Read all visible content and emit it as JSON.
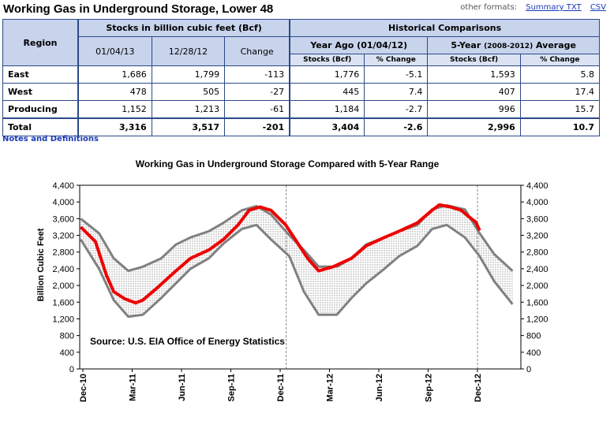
{
  "header": {
    "title": "Working Gas in Underground Storage, Lower 48",
    "other_formats_label": "other formats:",
    "summary_txt_link": "Summary TXT",
    "csv_link": "CSV"
  },
  "table": {
    "region_header": "Region",
    "stocks_header": "Stocks in billion cubic feet (Bcf)",
    "historical_header": "Historical Comparisons",
    "col_date1": "01/04/13",
    "col_date2": "12/28/12",
    "col_change": "Change",
    "year_ago_header": "Year Ago (01/04/12)",
    "five_year_header_main": "5-Year",
    "five_year_header_range": "(2008-2012)",
    "five_year_header_avg": "Average",
    "sub_stocks_1": "Stocks (Bcf)",
    "sub_pct_1": "% Change",
    "sub_stocks_2": "Stocks (Bcf)",
    "sub_pct_2": "% Change",
    "rows": [
      {
        "region": "East",
        "d1": "1,686",
        "d2": "1,799",
        "change": "-113",
        "ya_stocks": "1,776",
        "ya_pct": "-5.1",
        "fy_stocks": "1,593",
        "fy_pct": "5.8"
      },
      {
        "region": "West",
        "d1": "478",
        "d2": "505",
        "change": "-27",
        "ya_stocks": "445",
        "ya_pct": "7.4",
        "fy_stocks": "407",
        "fy_pct": "17.4"
      },
      {
        "region": "Producing",
        "d1": "1,152",
        "d2": "1,213",
        "change": "-61",
        "ya_stocks": "1,184",
        "ya_pct": "-2.7",
        "fy_stocks": "996",
        "fy_pct": "15.7"
      },
      {
        "region": "Total",
        "d1": "3,316",
        "d2": "3,517",
        "change": "-201",
        "ya_stocks": "3,404",
        "ya_pct": "-2.6",
        "fy_stocks": "2,996",
        "fy_pct": "10.7"
      }
    ],
    "notes_link": "Notes and Definitions"
  },
  "chart_data": {
    "type": "line",
    "title": "Working Gas in Underground Storage Compared with 5-Year Range",
    "ylabel": "Billion Cubic Feet",
    "annotation": "Source:  U.S. EIA Office of Energy Statistics",
    "ylim": [
      0,
      4400
    ],
    "yticks": [
      "0",
      "400",
      "800",
      "1,200",
      "1,600",
      "2,000",
      "2,400",
      "2,800",
      "3,200",
      "3,600",
      "4,000",
      "4,400"
    ],
    "x_tick_labels": [
      "Dec-10",
      "Mar-11",
      "Jun-11",
      "Sep-11",
      "Dec-11",
      "Mar-12",
      "Jun-12",
      "Sep-12",
      "Dec-12"
    ],
    "colors": {
      "actual": "#ee0000",
      "range": "#808080",
      "fill": "#d8d8d8",
      "frame": "#000000"
    },
    "series": [
      {
        "name": "",
        "role": "5-year maximum",
        "x": [
          "2010-12-03",
          "2011-01-07",
          "2011-02-04",
          "2011-03-04",
          "2011-04-01",
          "2011-05-06",
          "2011-06-03",
          "2011-07-01",
          "2011-08-05",
          "2011-09-02",
          "2011-10-07",
          "2011-11-04",
          "2011-12-02",
          "2012-01-06",
          "2012-02-03",
          "2012-03-02",
          "2012-04-06",
          "2012-05-04",
          "2012-06-01",
          "2012-07-06",
          "2012-08-03",
          "2012-09-07",
          "2012-10-05",
          "2012-11-02",
          "2012-12-07",
          "2013-01-04",
          "2013-02-01",
          "2013-03-08"
        ],
        "values": [
          3600,
          3250,
          2650,
          2350,
          2450,
          2650,
          2980,
          3150,
          3300,
          3500,
          3800,
          3900,
          3700,
          3200,
          2850,
          2450,
          2450,
          2650,
          2980,
          3150,
          3300,
          3450,
          3820,
          3920,
          3820,
          3250,
          2750,
          2350
        ]
      },
      {
        "name": "",
        "role": "5-year minimum",
        "x": [
          "2010-12-03",
          "2011-01-07",
          "2011-02-04",
          "2011-03-04",
          "2011-04-01",
          "2011-05-06",
          "2011-06-03",
          "2011-07-01",
          "2011-08-05",
          "2011-09-02",
          "2011-10-07",
          "2011-11-04",
          "2011-12-02",
          "2012-01-06",
          "2012-02-03",
          "2012-03-02",
          "2012-04-06",
          "2012-05-04",
          "2012-06-01",
          "2012-07-06",
          "2012-08-03",
          "2012-09-07",
          "2012-10-05",
          "2012-11-02",
          "2012-12-07",
          "2013-01-04",
          "2013-02-01",
          "2013-03-08"
        ],
        "values": [
          3100,
          2400,
          1650,
          1250,
          1300,
          1700,
          2050,
          2400,
          2650,
          3000,
          3350,
          3450,
          3100,
          2700,
          1850,
          1300,
          1300,
          1700,
          2050,
          2400,
          2700,
          2950,
          3350,
          3450,
          3150,
          2700,
          2100,
          1550
        ]
      },
      {
        "name": "",
        "role": "working gas in storage",
        "x": [
          "2010-12-03",
          "2010-12-31",
          "2011-01-21",
          "2011-02-04",
          "2011-02-25",
          "2011-03-18",
          "2011-04-01",
          "2011-04-29",
          "2011-06-03",
          "2011-07-01",
          "2011-08-05",
          "2011-09-02",
          "2011-09-30",
          "2011-10-21",
          "2011-11-11",
          "2011-12-02",
          "2011-12-30",
          "2012-01-20",
          "2012-02-10",
          "2012-03-02",
          "2012-03-30",
          "2012-05-04",
          "2012-06-01",
          "2012-07-06",
          "2012-08-03",
          "2012-09-07",
          "2012-10-05",
          "2012-10-19",
          "2012-11-09",
          "2012-11-30",
          "2012-12-14",
          "2012-12-28",
          "2013-01-04"
        ],
        "values": [
          3400,
          3050,
          2250,
          1850,
          1680,
          1580,
          1650,
          1950,
          2350,
          2650,
          2850,
          3100,
          3450,
          3800,
          3880,
          3800,
          3450,
          3050,
          2650,
          2350,
          2450,
          2650,
          2950,
          3150,
          3300,
          3500,
          3800,
          3930,
          3880,
          3800,
          3650,
          3517,
          3316
        ]
      }
    ]
  }
}
